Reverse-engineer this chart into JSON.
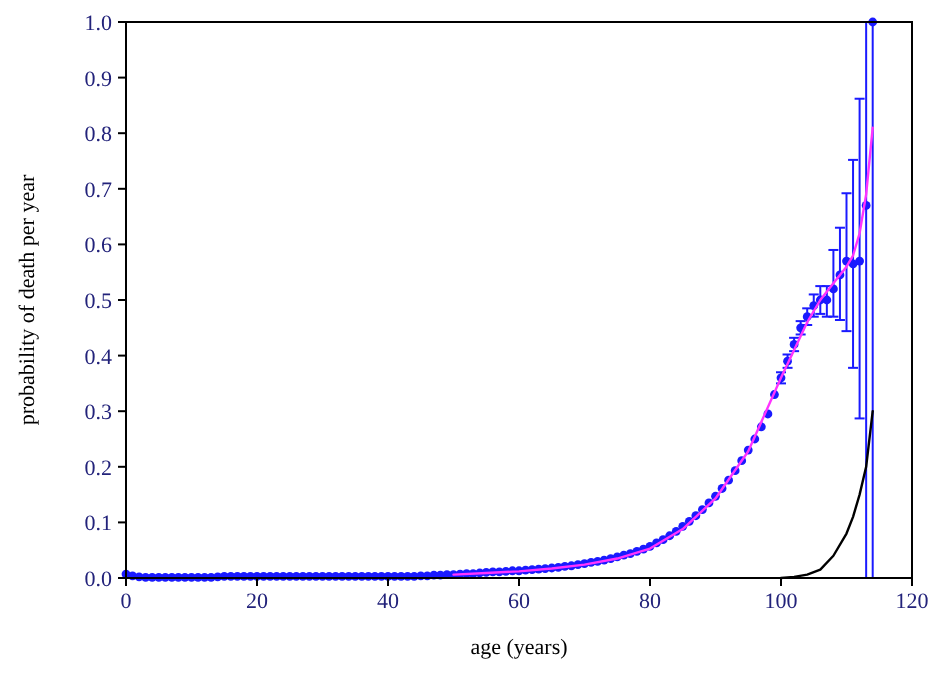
{
  "chart_data": {
    "type": "scatter",
    "xlabel": "age (years)",
    "ylabel": "probability of death per year",
    "xlim": [
      0,
      120
    ],
    "xticks": [
      0,
      20,
      40,
      60,
      80,
      100,
      120
    ],
    "ylim": [
      0,
      1
    ],
    "yticks": [
      {
        "value": 0,
        "label": "0.0"
      },
      0.1,
      0.2,
      0.3,
      0.4,
      0.5,
      0.6,
      0.7,
      0.8,
      0.9,
      {
        "value": 1,
        "label": "1.0"
      }
    ],
    "grid": false,
    "series": [
      {
        "type": "line",
        "color": "#ff33ff",
        "marker": "none",
        "line_style": "solid",
        "x": [
          50,
          55,
          60,
          65,
          70,
          75,
          80,
          85,
          90,
          95,
          100,
          102,
          104,
          106,
          108,
          110,
          111,
          112,
          113,
          114
        ],
        "values": [
          0.006,
          0.009,
          0.012,
          0.017,
          0.024,
          0.035,
          0.053,
          0.088,
          0.143,
          0.228,
          0.36,
          0.41,
          0.46,
          0.5,
          0.53,
          0.56,
          0.58,
          0.62,
          0.69,
          0.81
        ]
      },
      {
        "type": "line",
        "color": "#000000",
        "marker": "none",
        "line_style": "solid",
        "x": [
          100,
          102,
          104,
          106,
          108,
          110,
          111,
          112,
          113,
          114
        ],
        "values": [
          0,
          0.002,
          0.006,
          0.015,
          0.04,
          0.08,
          0.11,
          0.15,
          0.2,
          0.3
        ]
      },
      {
        "color": "#1a1aff",
        "marker": "circle",
        "x": [
          0,
          1,
          2,
          3,
          4,
          5,
          6,
          7,
          8,
          9,
          10,
          11,
          12,
          13,
          14,
          15,
          16,
          17,
          18,
          19,
          20,
          21,
          22,
          23,
          24,
          25,
          26,
          27,
          28,
          29,
          30,
          31,
          32,
          33,
          34,
          35,
          36,
          37,
          38,
          39,
          40,
          41,
          42,
          43,
          44,
          45,
          46,
          47,
          48,
          49,
          50,
          51,
          52,
          53,
          54,
          55,
          56,
          57,
          58,
          59,
          60,
          61,
          62,
          63,
          64,
          65,
          66,
          67,
          68,
          69,
          70,
          71,
          72,
          73,
          74,
          75,
          76,
          77,
          78,
          79,
          80,
          81,
          82,
          83,
          84,
          85,
          86,
          87,
          88,
          89,
          90,
          91,
          92,
          93,
          94,
          95,
          96,
          97,
          98,
          99,
          100,
          101,
          102,
          103,
          104,
          105,
          106,
          107,
          108,
          109,
          110,
          111,
          112,
          113,
          114
        ],
        "values": [
          0.007,
          0.004,
          0.002,
          0.001,
          0.001,
          0.001,
          0.001,
          0.001,
          0.001,
          0.001,
          0.001,
          0.001,
          0.001,
          0.001,
          0.002,
          0.003,
          0.003,
          0.003,
          0.003,
          0.003,
          0.003,
          0.003,
          0.003,
          0.003,
          0.003,
          0.003,
          0.003,
          0.003,
          0.003,
          0.003,
          0.003,
          0.003,
          0.003,
          0.003,
          0.003,
          0.003,
          0.003,
          0.003,
          0.003,
          0.003,
          0.003,
          0.003,
          0.003,
          0.003,
          0.003,
          0.004,
          0.004,
          0.005,
          0.005,
          0.006,
          0.006,
          0.007,
          0.008,
          0.008,
          0.009,
          0.01,
          0.011,
          0.011,
          0.012,
          0.013,
          0.013,
          0.014,
          0.015,
          0.016,
          0.017,
          0.018,
          0.019,
          0.021,
          0.022,
          0.024,
          0.026,
          0.028,
          0.03,
          0.032,
          0.035,
          0.038,
          0.041,
          0.044,
          0.048,
          0.052,
          0.057,
          0.063,
          0.069,
          0.076,
          0.084,
          0.093,
          0.102,
          0.112,
          0.123,
          0.135,
          0.147,
          0.161,
          0.176,
          0.193,
          0.211,
          0.23,
          0.25,
          0.272,
          0.295,
          0.33,
          0.36,
          0.39,
          0.42,
          0.45,
          0.47,
          0.49,
          0.5,
          0.5,
          0.52,
          0.545,
          0.57,
          0.565,
          0.57,
          0.67,
          1.0
        ],
        "errors": [
          null,
          null,
          null,
          null,
          null,
          null,
          null,
          null,
          null,
          null,
          null,
          null,
          null,
          null,
          null,
          null,
          null,
          null,
          null,
          null,
          null,
          null,
          null,
          null,
          null,
          null,
          null,
          null,
          null,
          null,
          null,
          null,
          null,
          null,
          null,
          null,
          null,
          null,
          null,
          null,
          null,
          null,
          null,
          null,
          null,
          null,
          null,
          null,
          null,
          null,
          null,
          null,
          null,
          null,
          null,
          null,
          null,
          null,
          null,
          null,
          null,
          null,
          null,
          null,
          null,
          null,
          null,
          null,
          null,
          null,
          null,
          null,
          null,
          null,
          null,
          null,
          null,
          null,
          null,
          null,
          null,
          null,
          null,
          null,
          null,
          null,
          null,
          null,
          null,
          null,
          null,
          null,
          null,
          null,
          null,
          null,
          null,
          null,
          null,
          null,
          0.01,
          0.012,
          0.012,
          0.012,
          0.015,
          0.02,
          0.025,
          [
            0.47,
            0.525
          ],
          [
            0.47,
            0.59
          ],
          [
            0.464,
            0.63
          ],
          [
            0.444,
            0.692
          ],
          [
            0.378,
            0.752
          ],
          [
            0.287,
            0.862
          ],
          [
            0,
            1
          ],
          [
            0,
            1
          ]
        ]
      }
    ]
  }
}
